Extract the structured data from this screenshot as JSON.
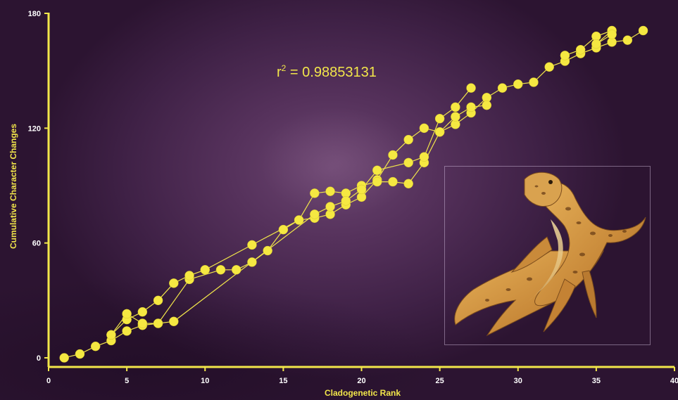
{
  "chart_data": {
    "type": "scatter",
    "xlabel": "Cladogenetic Rank",
    "ylabel": "Cumulative Character Changes",
    "xlim": [
      0,
      40
    ],
    "ylim": [
      0,
      180
    ],
    "x_ticks": [
      "0",
      "5",
      "10",
      "15",
      "20",
      "25",
      "30",
      "35",
      "40"
    ],
    "y_ticks": [
      "0",
      "60",
      "120",
      "180"
    ],
    "annotation": {
      "base": "r",
      "sup": "2",
      "rest": " = 0.98853131"
    },
    "grid": false,
    "legend": "none",
    "colors": {
      "points": "#f5e842",
      "axes": "#f2e64a",
      "background": "#4a2650"
    },
    "series": [
      {
        "x": [
          1,
          2,
          3,
          4,
          5,
          6,
          7,
          9,
          11,
          12,
          13,
          14,
          15,
          16,
          17,
          18,
          19,
          20,
          21,
          22,
          23,
          24,
          25,
          26,
          27,
          28,
          29,
          30,
          31,
          32,
          33,
          34,
          35,
          36,
          37,
          38
        ],
        "y": [
          0,
          2,
          6,
          9,
          14,
          17,
          18,
          41,
          46,
          46,
          50,
          56,
          67,
          72,
          73,
          75,
          80,
          84,
          93,
          106,
          114,
          120,
          118,
          122,
          128,
          136,
          141,
          143,
          144,
          152,
          155,
          159,
          162,
          165,
          166,
          171
        ]
      },
      {
        "x": [
          4,
          5,
          6,
          7,
          8,
          9,
          10,
          13,
          16,
          17,
          18,
          19,
          20,
          21,
          22,
          23,
          24,
          25,
          26,
          27,
          28
        ],
        "y": [
          12,
          20,
          24,
          30,
          39,
          43,
          46,
          59,
          72,
          86,
          87,
          86,
          90,
          92,
          92,
          91,
          102,
          118,
          126,
          131,
          132
        ]
      },
      {
        "x": [
          4,
          5,
          6,
          7,
          8,
          17,
          18,
          19,
          20,
          21,
          23,
          24,
          25,
          26,
          27
        ],
        "y": [
          12,
          23,
          18,
          18,
          19,
          75,
          79,
          82,
          88,
          98,
          102,
          105,
          125,
          131,
          141
        ]
      },
      {
        "x": [
          33,
          34,
          35,
          36,
          35,
          36
        ],
        "y": [
          158,
          161,
          168,
          171,
          164,
          169
        ]
      }
    ]
  }
}
